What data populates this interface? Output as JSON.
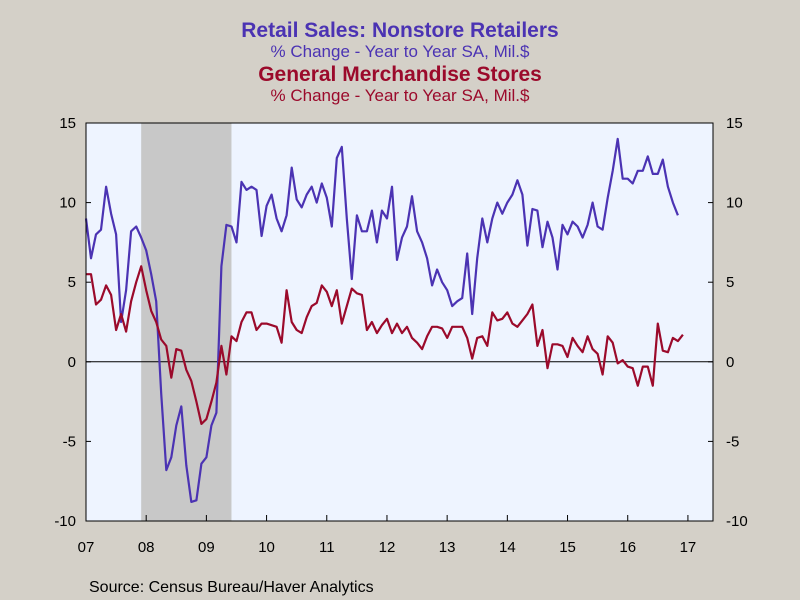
{
  "chart_data": {
    "type": "line",
    "titles": [
      {
        "text": "Retail Sales: Nonstore Retailers",
        "subtitle": "% Change - Year to Year   SA, Mil.$",
        "color": "#4b33b3"
      },
      {
        "text": "General Merchandise Stores",
        "subtitle": "% Change - Year to Year   SA, Mil.$",
        "color": "#9b0a2b"
      }
    ],
    "x_tick_labels": [
      "07",
      "08",
      "09",
      "10",
      "11",
      "12",
      "13",
      "14",
      "15",
      "16",
      "17"
    ],
    "x_range": [
      "2007-01",
      "2017-06"
    ],
    "ylim": [
      -10,
      15
    ],
    "y_ticks": [
      15,
      10,
      5,
      0,
      -5,
      -10
    ],
    "y_tick_labels": [
      "15",
      "10",
      "5",
      "0",
      "-5",
      "-10"
    ],
    "zero_line": true,
    "recession_shading": {
      "start": "2007-12",
      "end": "2009-06",
      "color": "#c8c8c8"
    },
    "plot_background": "#eef4ff",
    "series": [
      {
        "name": "Retail Sales: Nonstore Retailers",
        "color": "#4b33b3",
        "start": "2007-01",
        "frequency": "monthly",
        "values": [
          9.0,
          6.5,
          8.0,
          8.3,
          11.0,
          9.3,
          8.0,
          2.5,
          4.5,
          8.2,
          8.5,
          7.8,
          7.0,
          5.5,
          3.8,
          -2.0,
          -6.8,
          -6.0,
          -4.0,
          -2.8,
          -6.5,
          -8.8,
          -8.7,
          -6.4,
          -6.0,
          -4.0,
          -3.2,
          6.0,
          8.6,
          8.5,
          7.5,
          11.3,
          10.8,
          11.0,
          10.8,
          7.9,
          9.8,
          10.5,
          9.0,
          8.2,
          9.2,
          12.2,
          10.2,
          9.7,
          10.5,
          11.0,
          10.0,
          11.2,
          10.3,
          8.5,
          12.8,
          13.5,
          9.0,
          5.2,
          9.2,
          8.2,
          8.2,
          9.5,
          7.5,
          9.5,
          9.0,
          11.0,
          6.4,
          7.8,
          8.5,
          10.4,
          8.2,
          7.5,
          6.5,
          4.8,
          5.8,
          5.0,
          4.5,
          3.5,
          3.8,
          4.0,
          6.8,
          3.0,
          6.5,
          9.0,
          7.5,
          9.0,
          10.0,
          9.3,
          10.0,
          10.5,
          11.4,
          10.5,
          7.3,
          9.6,
          9.5,
          7.2,
          8.8,
          7.8,
          5.8,
          8.6,
          8.0,
          8.8,
          8.5,
          7.8,
          8.6,
          10.0,
          8.5,
          8.3,
          10.3,
          12.0,
          14.0,
          11.5,
          11.5,
          11.2,
          12.0,
          12.0,
          12.9,
          11.8,
          11.8,
          12.7,
          11.0,
          10.0,
          9.2
        ]
      },
      {
        "name": "General Merchandise Stores",
        "color": "#9b0a2b",
        "start": "2007-01",
        "frequency": "monthly",
        "values": [
          5.5,
          5.5,
          3.6,
          3.9,
          4.8,
          4.2,
          2.0,
          3.0,
          1.9,
          3.8,
          5.0,
          6.0,
          4.5,
          3.2,
          2.5,
          1.4,
          1.0,
          -1.0,
          0.8,
          0.7,
          -0.5,
          -1.2,
          -2.5,
          -3.9,
          -3.6,
          -2.5,
          -1.3,
          1.0,
          -0.8,
          1.6,
          1.3,
          2.5,
          3.1,
          3.1,
          2.0,
          2.4,
          2.4,
          2.3,
          2.2,
          1.2,
          4.5,
          2.5,
          2.0,
          1.8,
          2.8,
          3.5,
          3.7,
          4.8,
          4.4,
          3.5,
          4.5,
          2.4,
          3.5,
          4.6,
          4.3,
          4.2,
          2.0,
          2.5,
          1.8,
          2.3,
          2.7,
          1.8,
          2.4,
          1.8,
          2.2,
          1.5,
          1.2,
          0.8,
          1.6,
          2.2,
          2.2,
          2.1,
          1.5,
          2.2,
          2.2,
          2.2,
          1.5,
          0.2,
          1.5,
          1.6,
          1.0,
          3.1,
          2.6,
          2.7,
          3.1,
          2.4,
          2.2,
          2.6,
          3.0,
          3.6,
          1.0,
          2.0,
          -0.4,
          1.1,
          1.1,
          1.0,
          0.3,
          1.5,
          1.0,
          0.6,
          1.6,
          0.8,
          0.5,
          -0.8,
          1.6,
          1.2,
          -0.1,
          0.1,
          -0.3,
          -0.4,
          -1.5,
          -0.3,
          -0.3,
          -1.5,
          2.4,
          0.7,
          0.6,
          1.5,
          1.3,
          1.7
        ]
      }
    ]
  },
  "source": "Source:  Census Bureau/Haver Analytics"
}
